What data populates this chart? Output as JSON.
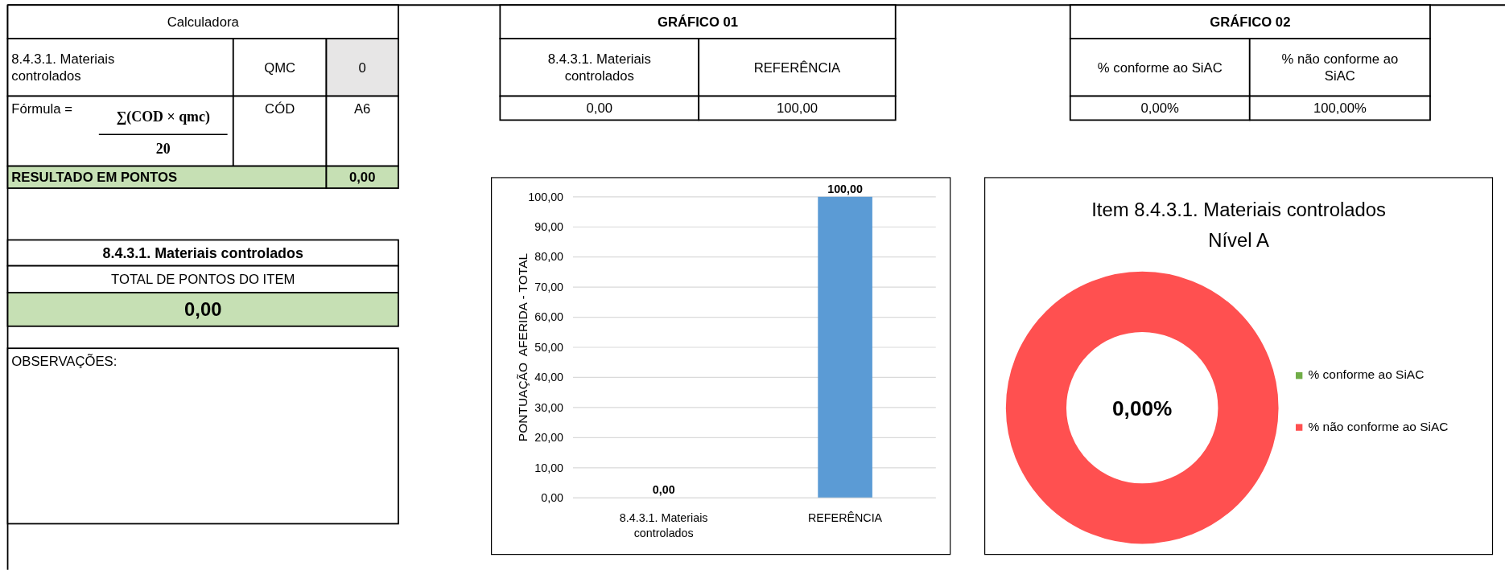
{
  "chart_data": [
    {
      "type": "other",
      "title": "Calculadora",
      "annotations": [
        "8.4.3.1. Materiais controlados",
        "QMC",
        "0",
        "Fórmula =",
        "∑(COD × qmc)",
        "20",
        "CÓD",
        "A6",
        "RESULTADO EM PONTOS",
        "0,00"
      ]
    },
    {
      "type": "other",
      "title": "8.4.3.1. Materiais controlados",
      "annotations": [
        "TOTAL DE PONTOS DO ITEM",
        "0,00"
      ]
    },
    {
      "type": "other",
      "title": "OBSERVAÇÕES:"
    },
    {
      "type": "other",
      "title": "GRÁFICO 01",
      "annotations": [
        "8.4.3.1. Materiais controlados",
        "REFERÊNCIA",
        "0,00",
        "100,00"
      ]
    },
    {
      "type": "other",
      "title": "GRÁFICO 02",
      "annotations": [
        "% conforme ao SiAC",
        "% não conforme ao SiAC",
        "0,00%",
        "100,00%"
      ]
    },
    {
      "type": "bar",
      "categories": [
        "8.4.3.1. Materiais controlados",
        "REFERÊNCIA"
      ],
      "values": [
        0,
        100
      ],
      "color": "#5b9bd5",
      "value_labels": [
        "0,00",
        "100,00"
      ],
      "ylabel": "PONTUAÇÃO  AFERIDA - TOTAL",
      "ylim": [
        0,
        100
      ],
      "yticks": [
        {
          "value": 0,
          "label": "0,00"
        },
        {
          "value": 10,
          "label": "10,00"
        },
        {
          "value": 20,
          "label": "20,00"
        },
        {
          "value": 30,
          "label": "30,00"
        },
        {
          "value": 40,
          "label": "40,00"
        },
        {
          "value": 50,
          "label": "50,00"
        },
        {
          "value": 60,
          "label": "60,00"
        },
        {
          "value": 70,
          "label": "70,00"
        },
        {
          "value": 80,
          "label": "80,00"
        },
        {
          "value": 90,
          "label": "90,00"
        },
        {
          "value": 100,
          "label": "100,00"
        }
      ],
      "grid": "y"
    },
    {
      "type": "donut",
      "title": "Item 8.4.3.1. Materiais controlados",
      "subtitle": "Nível A",
      "categories": [
        "% conforme ao SiAC",
        "% não conforme ao SiAC"
      ],
      "values": [
        0,
        100
      ],
      "colors": [
        "#70ad47",
        "#ff5050"
      ],
      "legend": "right",
      "annotations": [
        "0,00%"
      ]
    }
  ]
}
